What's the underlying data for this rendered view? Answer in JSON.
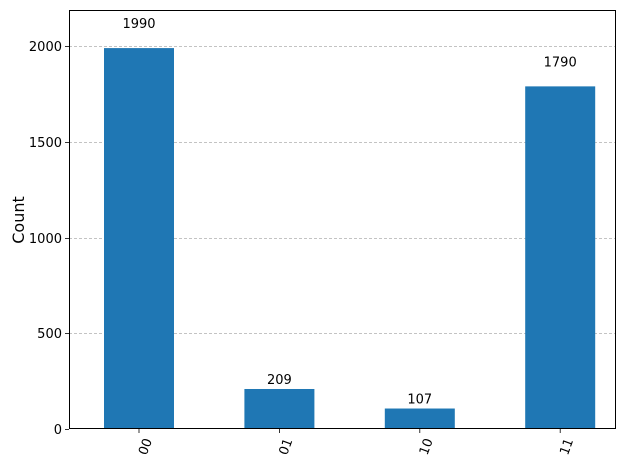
{
  "chart_data": {
    "type": "bar",
    "categories": [
      "00",
      "01",
      "10",
      "11"
    ],
    "values": [
      1990,
      209,
      107,
      1790
    ],
    "data_labels": [
      "1990",
      "209",
      "107",
      "1790"
    ],
    "title": "",
    "xlabel": "",
    "ylabel": "Count",
    "ylim": [
      0,
      2189
    ],
    "yticks": [
      0,
      500,
      1000,
      1500,
      2000
    ],
    "ytick_labels": [
      "0",
      "500",
      "1000",
      "1500",
      "2000"
    ],
    "grid": "y dashed",
    "bar_color": "#1f77b4",
    "grid_color": "#b0b0b0",
    "xtick_rotation_deg": 70
  }
}
